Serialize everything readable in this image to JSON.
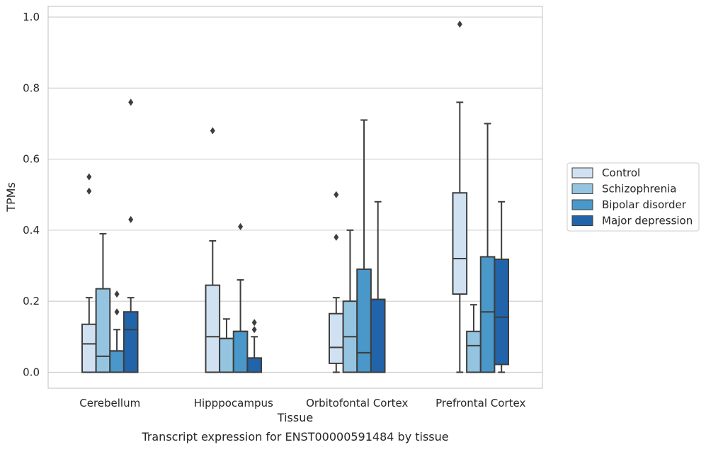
{
  "chart_data": {
    "type": "box",
    "xlabel": "Tissue",
    "ylabel": "TPMs",
    "caption": "Transcript expression for ENST00000591484 by tissue",
    "ylim": [
      -0.045,
      1.03
    ],
    "yticks": [
      "0.0",
      "0.2",
      "0.4",
      "0.6",
      "0.8",
      "1.0"
    ],
    "grid": true,
    "legend_position": "right-center",
    "categories": [
      "Cerebellum",
      "Hipppocampus",
      "Orbitofontal Cortex",
      "Prefrontal Cortex"
    ],
    "series": [
      {
        "name": "Control",
        "color": "#d0e1f2",
        "boxes": [
          {
            "min": 0.0,
            "q1": 0.0,
            "median": 0.08,
            "q3": 0.135,
            "max": 0.21,
            "outliers": [
              0.51,
              0.55
            ]
          },
          {
            "min": 0.0,
            "q1": 0.0,
            "median": 0.1,
            "q3": 0.245,
            "max": 0.37,
            "outliers": [
              0.68
            ]
          },
          {
            "min": 0.0,
            "q1": 0.025,
            "median": 0.07,
            "q3": 0.165,
            "max": 0.21,
            "outliers": [
              0.38,
              0.5
            ]
          },
          {
            "min": 0.0,
            "q1": 0.22,
            "median": 0.32,
            "q3": 0.505,
            "max": 0.76,
            "outliers": [
              0.98
            ]
          }
        ]
      },
      {
        "name": "Schizophrenia",
        "color": "#94c4df",
        "boxes": [
          {
            "min": 0.0,
            "q1": 0.0,
            "median": 0.045,
            "q3": 0.235,
            "max": 0.39,
            "outliers": []
          },
          {
            "min": 0.0,
            "q1": 0.0,
            "median": 0.095,
            "q3": 0.095,
            "max": 0.15,
            "outliers": []
          },
          {
            "min": 0.0,
            "q1": 0.0,
            "median": 0.1,
            "q3": 0.2,
            "max": 0.4,
            "outliers": []
          },
          {
            "min": 0.0,
            "q1": 0.0,
            "median": 0.075,
            "q3": 0.115,
            "max": 0.19,
            "outliers": []
          }
        ]
      },
      {
        "name": "Bipolar disorder",
        "color": "#4a98c9",
        "boxes": [
          {
            "min": 0.0,
            "q1": 0.0,
            "median": 0.06,
            "q3": 0.06,
            "max": 0.12,
            "outliers": [
              0.17,
              0.22
            ]
          },
          {
            "min": 0.0,
            "q1": 0.0,
            "median": 0.115,
            "q3": 0.115,
            "max": 0.26,
            "outliers": [
              0.41
            ]
          },
          {
            "min": 0.0,
            "q1": 0.0,
            "median": 0.055,
            "q3": 0.29,
            "max": 0.71,
            "outliers": []
          },
          {
            "min": 0.0,
            "q1": 0.0,
            "median": 0.17,
            "q3": 0.325,
            "max": 0.7,
            "outliers": []
          }
        ]
      },
      {
        "name": "Major depression",
        "color": "#2264a9",
        "boxes": [
          {
            "min": 0.0,
            "q1": 0.0,
            "median": 0.12,
            "q3": 0.17,
            "max": 0.21,
            "outliers": [
              0.43,
              0.76
            ]
          },
          {
            "min": 0.0,
            "q1": 0.0,
            "median": 0.04,
            "q3": 0.04,
            "max": 0.1,
            "outliers": [
              0.12,
              0.14
            ]
          },
          {
            "min": 0.0,
            "q1": 0.0,
            "median": 0.205,
            "q3": 0.205,
            "max": 0.48,
            "outliers": []
          },
          {
            "min": 0.0,
            "q1": 0.022,
            "median": 0.155,
            "q3": 0.318,
            "max": 0.48,
            "outliers": []
          }
        ]
      }
    ]
  }
}
